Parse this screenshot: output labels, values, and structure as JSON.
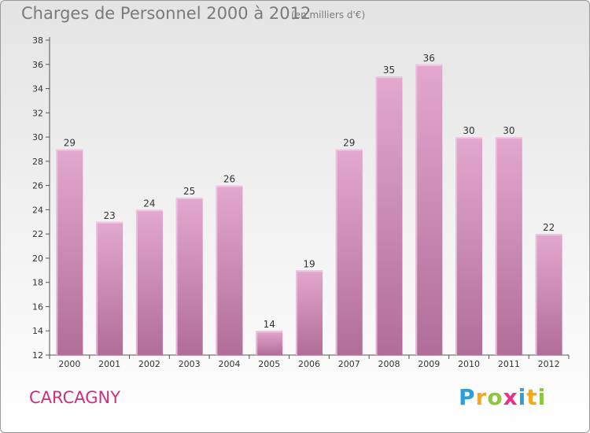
{
  "header": {
    "title": "Charges de Personnel 2000 à 2012",
    "subtitle": "(en milliers d'€)"
  },
  "footer": {
    "place": "CARCAGNY",
    "logo_letters": [
      "P",
      "r",
      "o",
      "x",
      "i",
      "t",
      "i"
    ],
    "logo_colors": [
      "#2a9fd8",
      "#f7a81b",
      "#8dc63f",
      "#e8318a",
      "#2a9fd8",
      "#f7a81b",
      "#8dc63f"
    ]
  },
  "chart_data": {
    "type": "bar",
    "title": "Charges de Personnel 2000 à 2012",
    "subtitle": "(en milliers d'€)",
    "categories": [
      "2000",
      "2001",
      "2002",
      "2003",
      "2004",
      "2005",
      "2006",
      "2007",
      "2008",
      "2009",
      "2010",
      "2011",
      "2012"
    ],
    "values": [
      29,
      23,
      24,
      25,
      26,
      14,
      19,
      29,
      35,
      36,
      30,
      30,
      22
    ],
    "ylim": [
      12,
      38
    ],
    "yticks": [
      12,
      14,
      16,
      18,
      20,
      22,
      24,
      26,
      28,
      30,
      32,
      34,
      36,
      38
    ],
    "grid": false,
    "bar_color_top": "#e3a8cf",
    "bar_color_bottom": "#b06d98"
  }
}
